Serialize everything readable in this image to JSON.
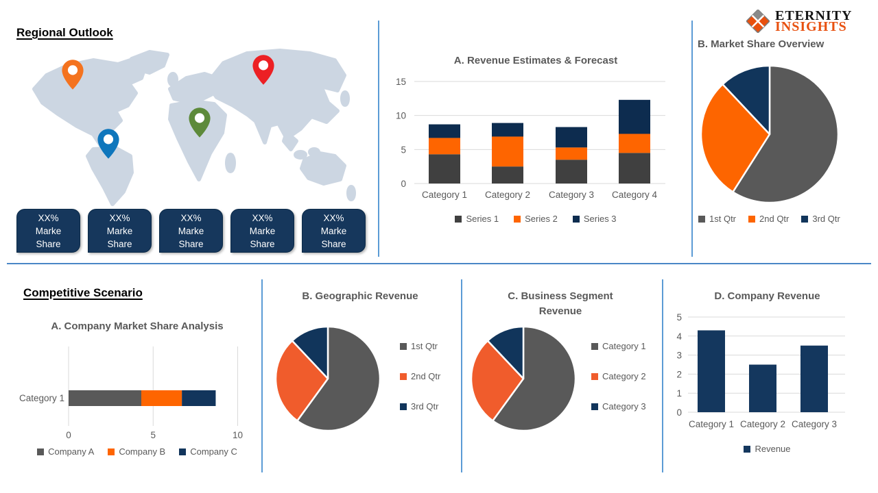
{
  "logo": {
    "name_top": "ETERNITY",
    "name_bottom": "INSIGHTS",
    "accent_color": "#e8500f"
  },
  "sections": {
    "regional_outlook": {
      "heading": "Regional Outlook"
    },
    "competitive_scenario": {
      "heading": "Competitive Scenario"
    }
  },
  "map": {
    "land_color": "#ccd6e2",
    "pins": [
      {
        "name": "pin-north-america",
        "color": "#f4731f"
      },
      {
        "name": "pin-russia",
        "color": "#ec2024"
      },
      {
        "name": "pin-africa",
        "color": "#5d8a3a"
      },
      {
        "name": "pin-south-america",
        "color": "#0e76bc"
      }
    ]
  },
  "share_boxes": [
    {
      "line1": "XX%",
      "line2": "Marke",
      "line3": "Share"
    },
    {
      "line1": "XX%",
      "line2": "Marke",
      "line3": "Share"
    },
    {
      "line1": "XX%",
      "line2": "Marke",
      "line3": "Share"
    },
    {
      "line1": "XX%",
      "line2": "Marke",
      "line3": "Share"
    },
    {
      "line1": "XX%",
      "line2": "Marke",
      "line3": "Share"
    }
  ],
  "colors": {
    "divider_blue": "#5b9bd5",
    "grid_gray": "#d9d9d9",
    "axis_text": "#595959"
  },
  "chart_data": [
    {
      "id": "revenue_estimates",
      "type": "column-stacked",
      "title": "A. Revenue Estimates & Forecast",
      "categories": [
        "Category 1",
        "Category 2",
        "Category 3",
        "Category 4"
      ],
      "series": [
        {
          "name": "Series 1",
          "color": "#404040",
          "values": [
            4.3,
            2.5,
            3.5,
            4.5
          ]
        },
        {
          "name": "Series 2",
          "color": "#fe6500",
          "values": [
            2.4,
            4.4,
            1.8,
            2.8
          ]
        },
        {
          "name": "Series 3",
          "color": "#0d2c4f",
          "values": [
            2.0,
            2.0,
            3.0,
            5.0
          ]
        }
      ],
      "ylim": [
        0,
        15
      ],
      "yticks": [
        0,
        5,
        10,
        15
      ],
      "legend_position": "bottom",
      "grid": true
    },
    {
      "id": "market_share_overview",
      "type": "pie",
      "title": "B. Market Share Overview",
      "labels": [
        "1st Qtr",
        "2nd Qtr",
        "3rd Qtr"
      ],
      "values": [
        59,
        29,
        12
      ],
      "colors": [
        "#595959",
        "#fd6500",
        "#11355b"
      ],
      "legend_position": "bottom"
    },
    {
      "id": "company_market_share",
      "type": "bar-horizontal-stacked",
      "title": "A. Company Market Share Analysis",
      "categories": [
        "Category 1"
      ],
      "series": [
        {
          "name": "Company A",
          "color": "#595959",
          "values": [
            4.3
          ]
        },
        {
          "name": "Company B",
          "color": "#fe6500",
          "values": [
            2.4
          ]
        },
        {
          "name": "Company C",
          "color": "#12355c",
          "values": [
            2.0
          ]
        }
      ],
      "xlim": [
        0,
        10
      ],
      "xticks": [
        0,
        5,
        10
      ],
      "legend_position": "bottom",
      "grid": true
    },
    {
      "id": "geographic_revenue",
      "type": "pie",
      "title": "B. Geographic Revenue",
      "labels": [
        "1st Qtr",
        "2nd Qtr",
        "3rd Qtr"
      ],
      "values": [
        60,
        28,
        12
      ],
      "colors": [
        "#595959",
        "#f05c2c",
        "#11355b"
      ],
      "legend_position": "right"
    },
    {
      "id": "business_segment_revenue",
      "type": "pie",
      "title_lines": [
        "C. Business Segment",
        "Revenue"
      ],
      "labels": [
        "Category 1",
        "Category 2",
        "Category 3"
      ],
      "values": [
        60,
        28,
        12
      ],
      "colors": [
        "#595959",
        "#f05c2c",
        "#11355b"
      ],
      "legend_position": "right"
    },
    {
      "id": "company_revenue",
      "type": "column",
      "title": "D. Company Revenue",
      "categories": [
        "Category 1",
        "Category 2",
        "Category 3"
      ],
      "series": [
        {
          "name": "Revenue",
          "color": "#14375e",
          "values": [
            4.3,
            2.5,
            3.5
          ]
        }
      ],
      "ylim": [
        0,
        5
      ],
      "yticks": [
        0,
        1,
        2,
        3,
        4,
        5
      ],
      "legend_position": "bottom",
      "grid": true
    }
  ]
}
